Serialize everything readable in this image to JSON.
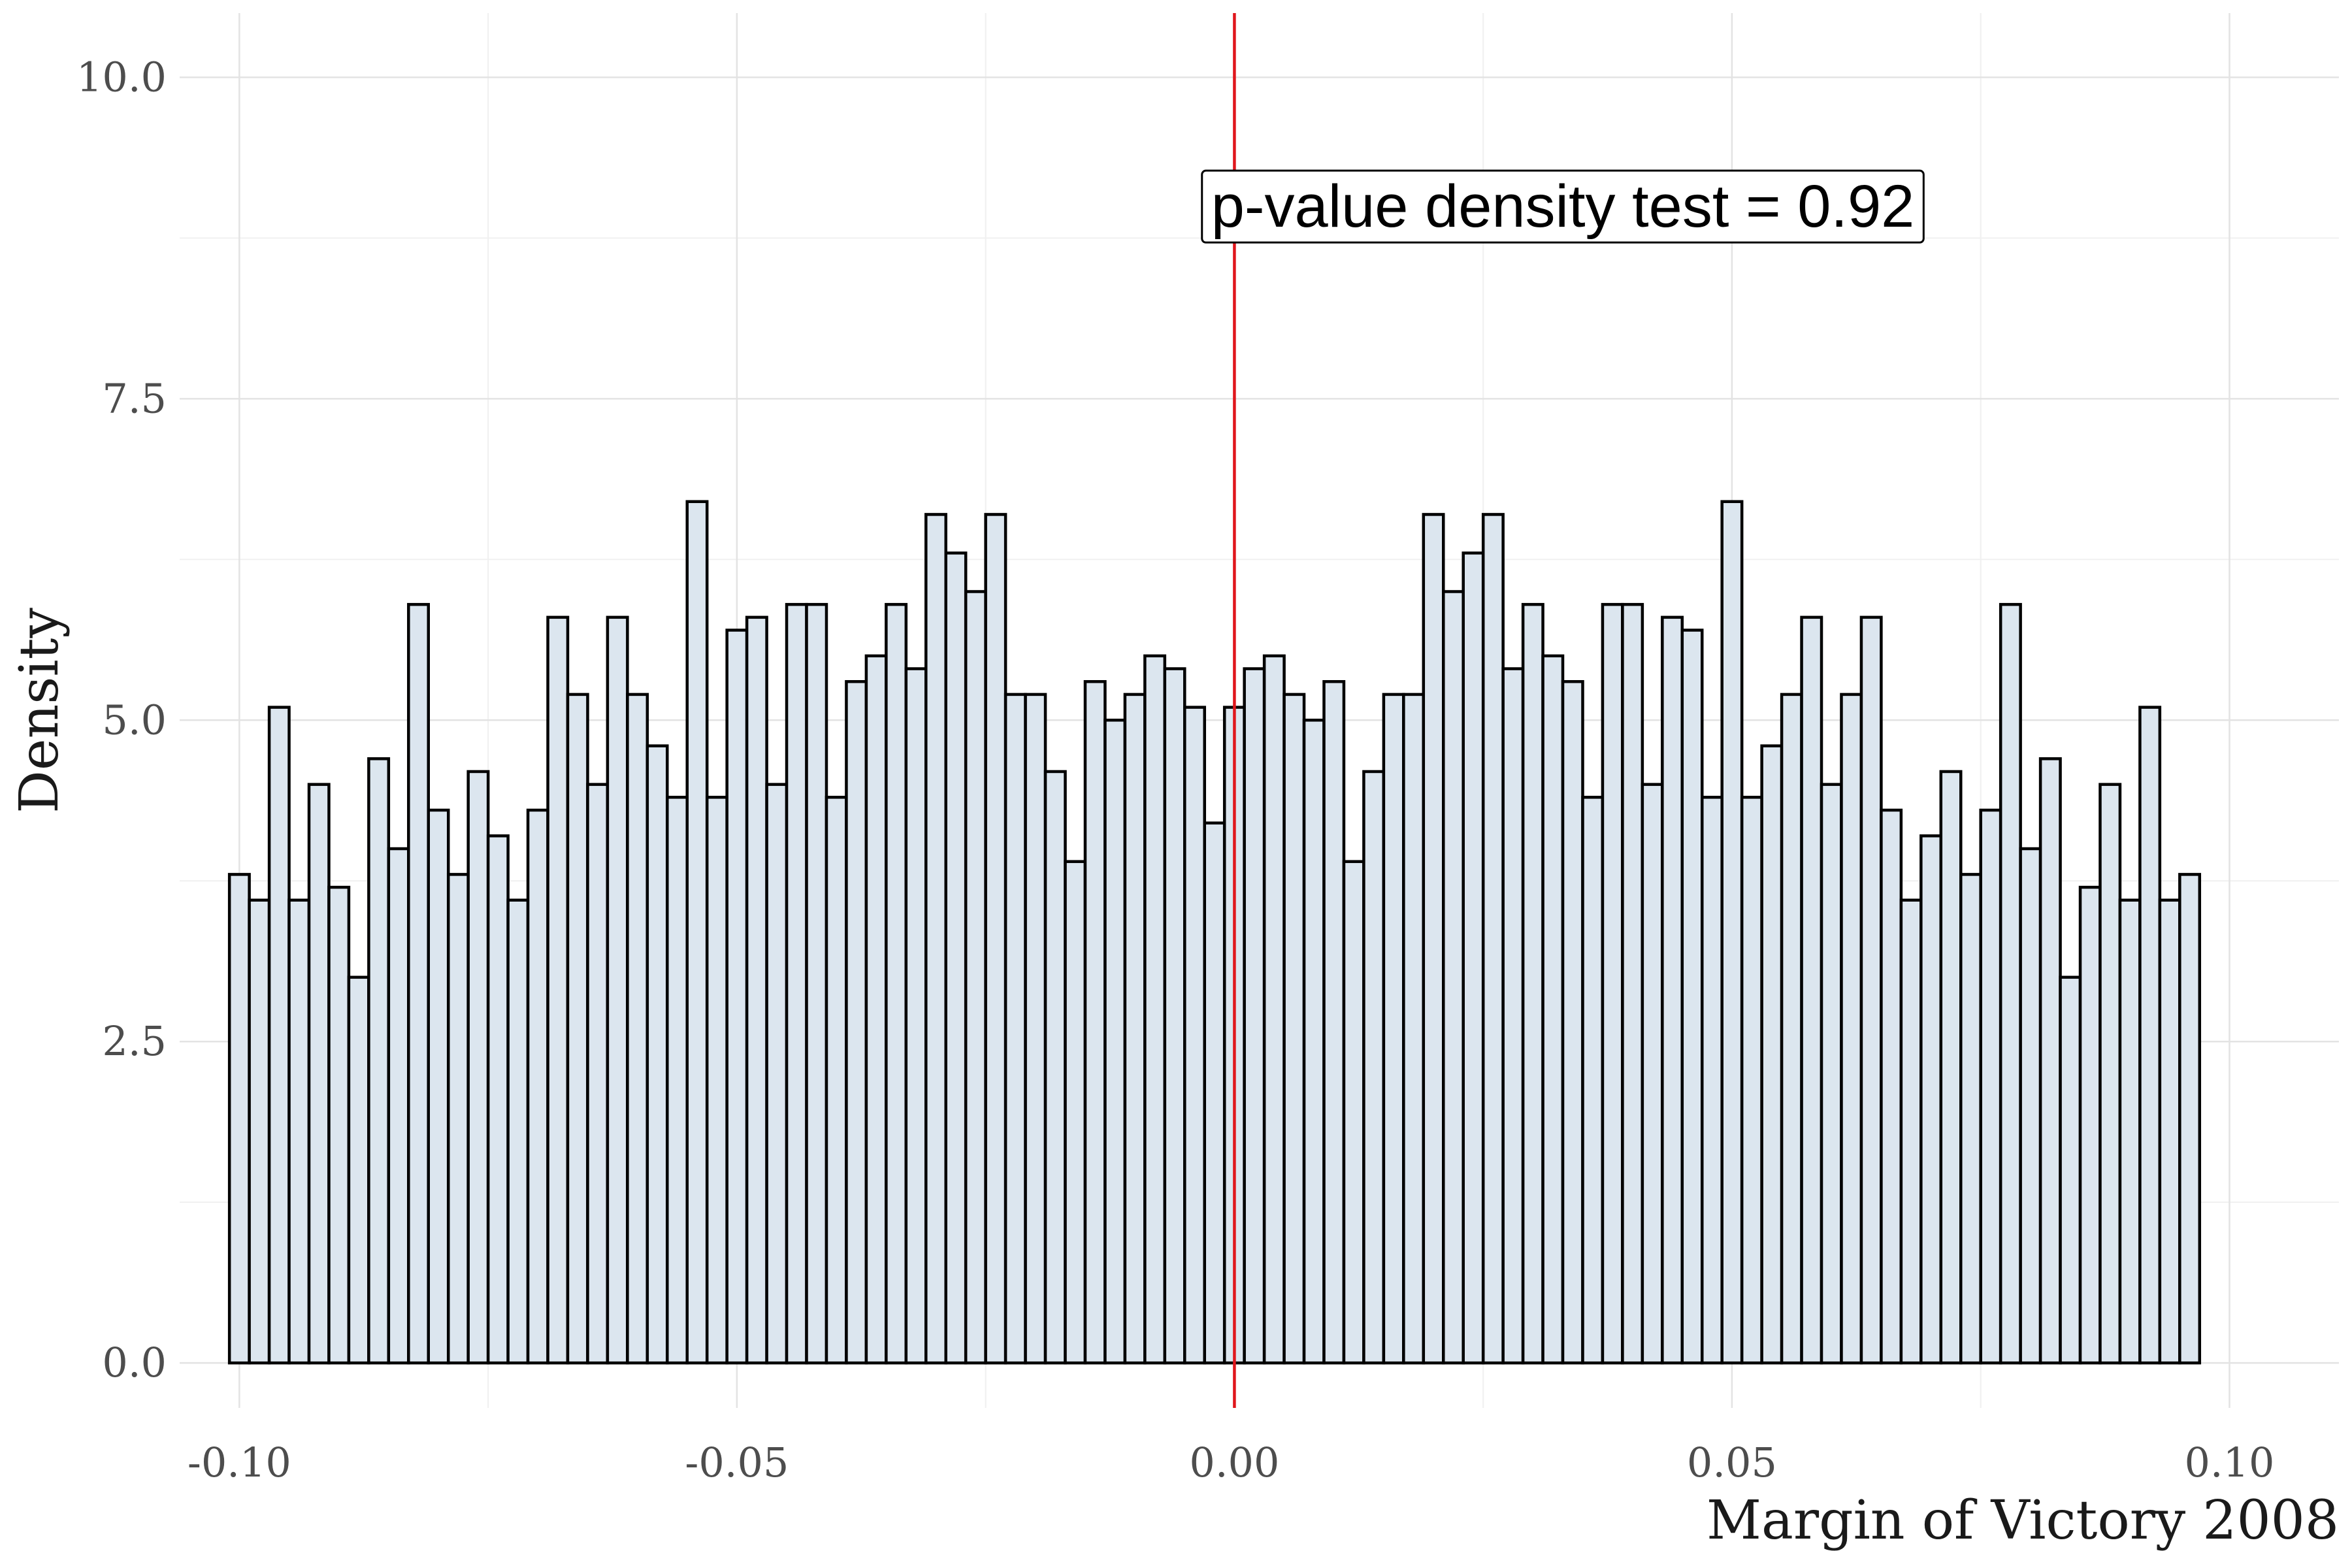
{
  "chart_data": {
    "type": "bar",
    "xlabel": "Margin of Victory 2008",
    "ylabel": "Density",
    "xlim": [
      -0.106,
      0.111
    ],
    "ylim": [
      -0.35,
      10.5
    ],
    "x_ticks": [
      -0.1,
      -0.05,
      0.0,
      0.05,
      0.1
    ],
    "x_tick_labels": [
      "-0.10",
      "-0.05",
      "0.00",
      "0.05",
      "0.10"
    ],
    "y_ticks": [
      0,
      2.5,
      5,
      7.5,
      10
    ],
    "y_tick_labels": [
      "0.0",
      "2.5",
      "5.0",
      "7.5",
      "10.0"
    ],
    "grid": true,
    "bin_start": -0.101,
    "bin_width": 0.002,
    "values": [
      3.8,
      3.6,
      5.1,
      3.6,
      4.5,
      3.7,
      3.0,
      4.7,
      4.0,
      5.9,
      4.3,
      3.8,
      4.6,
      4.1,
      3.6,
      4.3,
      5.8,
      5.2,
      4.5,
      5.8,
      5.2,
      4.8,
      4.4,
      6.7,
      4.4,
      5.7,
      5.8,
      4.5,
      5.9,
      5.9,
      4.4,
      5.3,
      5.5,
      5.9,
      5.4,
      6.6,
      6.3,
      6.0,
      6.6,
      5.2,
      5.2,
      4.6,
      3.9,
      5.3,
      5.0,
      5.2,
      5.5,
      5.4,
      5.1,
      4.2,
      5.1,
      5.4,
      5.5,
      5.2,
      5.0,
      5.3,
      3.9,
      4.6,
      5.2,
      5.2,
      6.6,
      6.0,
      6.3,
      6.6,
      5.4,
      5.9,
      5.5,
      5.3,
      4.4,
      5.9,
      5.9,
      4.5,
      5.8,
      5.7,
      4.4,
      6.7,
      4.4,
      4.8,
      5.2,
      5.8,
      4.5,
      5.2,
      5.8,
      4.3,
      3.6,
      4.1,
      4.6,
      3.8,
      4.3,
      5.9,
      4.0,
      4.7,
      3.0,
      3.7,
      4.5,
      3.6,
      5.1,
      3.6,
      3.8
    ],
    "cutoff_x": 0.0,
    "bar_fill": "#dce6ef",
    "bar_edge": "#000000",
    "cutoff_color": "#e0161c",
    "annotation": {
      "text": "p-value density test =  0.92",
      "x": 0.033,
      "y": 9.0
    }
  }
}
